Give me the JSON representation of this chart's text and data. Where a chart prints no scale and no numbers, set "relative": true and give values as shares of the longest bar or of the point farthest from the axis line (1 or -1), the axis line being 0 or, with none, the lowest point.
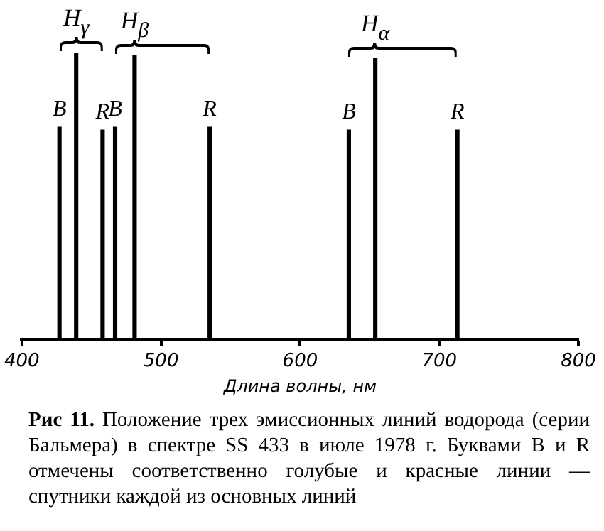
{
  "chart_data": {
    "type": "bar",
    "relative": true,
    "xlabel": "Длина волны, нм",
    "xlim": [
      400,
      800
    ],
    "xticks": [
      400,
      500,
      600,
      700,
      800
    ],
    "x": [
      427,
      439,
      458,
      467,
      481,
      535,
      635,
      654,
      713
    ],
    "series": [
      {
        "color": "#000000",
        "values": [
          0.74,
          1,
          0.73,
          0.74,
          0.99,
          0.74,
          0.73,
          0.98,
          0.73
        ]
      }
    ],
    "annotations": [
      {
        "text": "B",
        "x": 427,
        "y": 0.74
      },
      {
        "text": "H$_{γ}$",
        "x": 439,
        "y": 1
      },
      {
        "text": "R",
        "x": 458,
        "y": 0.73
      },
      {
        "text": "B",
        "x": 467,
        "y": 0.74
      },
      {
        "text": "H$_{β}$",
        "x": 481,
        "y": 0.99
      },
      {
        "text": "R",
        "x": 535,
        "y": 0.74
      },
      {
        "text": "B",
        "x": 635,
        "y": 0.73
      },
      {
        "text": "H$_{α}$",
        "x": 654,
        "y": 0.98
      },
      {
        "text": "R",
        "x": 713,
        "y": 0.73
      },
      "Рис 11.",
      "Положение трех эмиссионных линий водорода (серии Бальмера) в спектре SS 433 в июле 1978 г. Буквами B и R отмечены соответственно голубые и красные линии — спутники каждой из основных линий"
    ]
  }
}
